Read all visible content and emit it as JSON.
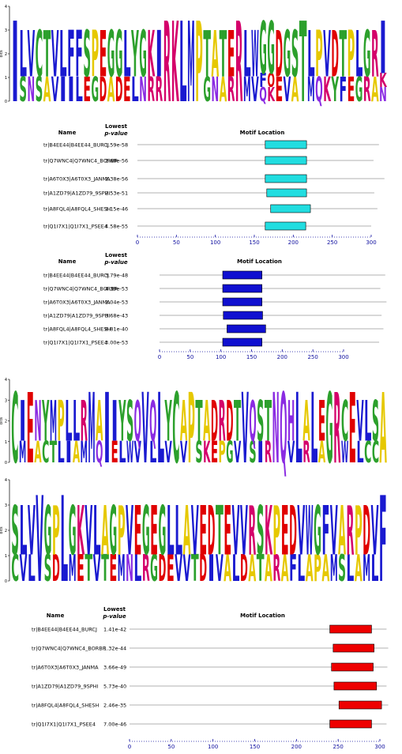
{
  "logo_axis": {
    "label": "bits",
    "ticks": [
      0,
      1,
      2,
      3,
      4
    ]
  },
  "colors": {
    "A": "#e6c800",
    "C": "#2ca02c",
    "D": "#e00000",
    "E": "#e00000",
    "F": "#1a1ad0",
    "G": "#2ca02c",
    "H": "#8a2be2",
    "I": "#1a1ad0",
    "K": "#d4006a",
    "L": "#1a1ad0",
    "M": "#1a1ad0",
    "N": "#8a2be2",
    "P": "#e6c800",
    "Q": "#8a2be2",
    "R": "#d4006a",
    "S": "#2ca02c",
    "T": "#2ca02c",
    "V": "#1a1ad0",
    "W": "#1a1ad0",
    "Y": "#2ca02c",
    "O": "#e00000"
  },
  "logos": [
    {
      "columns": [
        "I",
        "LS",
        "VN",
        "CS",
        "TA",
        "VV",
        "LI",
        "FI",
        "FL",
        "SE",
        "PG",
        "ED",
        "GA",
        "GD",
        "LE",
        "YL",
        "GN",
        "KR",
        "IR",
        "R",
        "K",
        "L",
        "M",
        "P",
        "TG",
        "AN",
        "TA",
        "ER",
        "R",
        "LM",
        "WV",
        "GFQ",
        "GOK",
        "DE",
        "GV",
        "SA",
        "T",
        "LM",
        "PQ",
        "VK",
        "DY",
        "TF",
        "PE",
        "LG",
        "GR",
        "RA",
        "IKN"
      ]
    },
    {
      "columns": [
        "C",
        "IM",
        "E",
        "NA",
        "YC",
        "MT",
        "PL",
        "LI",
        "LA",
        "RM",
        "M",
        "AQ",
        "I",
        "IE",
        "YL",
        "SW",
        "QV",
        "V",
        "QL",
        "L",
        "YV",
        "C",
        "AV",
        "P",
        "TS",
        "AK",
        "DE",
        "RP",
        "DG",
        "TV",
        "V",
        "QS",
        "SI",
        "TR",
        "N",
        "Q",
        "HV",
        "L",
        "AR",
        "L",
        "EA",
        "G",
        "R",
        "CW",
        "E",
        "VL",
        "LC",
        "SC",
        "A"
      ]
    },
    {
      "columns": [
        "SC",
        "LV",
        "VL",
        "V",
        "GS",
        "PD",
        "L",
        "GM",
        "KE",
        "VT",
        "LV",
        "AT",
        "GE",
        "PM",
        "VN",
        "EL",
        "GR",
        "EG",
        "GD",
        "LE",
        "LV",
        "AV",
        "VT",
        "ED",
        "DI",
        "TV",
        "EA",
        "VL",
        "VD",
        "RA",
        "ST",
        "KA",
        "PR",
        "EA",
        "DF",
        "VL",
        "WA",
        "GP",
        "FA",
        "VM",
        "AS",
        "RL",
        "PA",
        "DM",
        "VL",
        "F"
      ]
    }
  ],
  "tables": [
    {
      "headers": {
        "name": "Name",
        "lowest": "Lowest",
        "pvalue": "p-value",
        "location": "Motif Location"
      },
      "xlim": [
        0,
        300
      ],
      "xticks": [
        0,
        50,
        100,
        150,
        200,
        250,
        300
      ],
      "rows": [
        {
          "name": "tr|B4EE44|B4EE44_BURCJ",
          "pvalue": "1.59e-58",
          "length": 310,
          "start": 164,
          "end": 217
        },
        {
          "name": "tr|Q7WNC4|Q7WNC4_BORBR",
          "pvalue": "2.68e-56",
          "length": 303,
          "start": 164,
          "end": 217
        },
        {
          "name": "tr|A6T0X3|A6T0X3_JANMA",
          "pvalue": "2.38e-56",
          "length": 317,
          "start": 164,
          "end": 217
        },
        {
          "name": "tr|A1ZD79|A1ZD79_9SPHI",
          "pvalue": "2.53e-51",
          "length": 304,
          "start": 166,
          "end": 217
        },
        {
          "name": "tr|A8FQL4|A8FQL4_SHESH",
          "pvalue": "1.15e-46",
          "length": 308,
          "start": 171,
          "end": 222
        },
        {
          "name": "tr|Q1I7X1|Q1I7X1_PSEE4",
          "pvalue": "4.58e-55",
          "length": 300,
          "start": 164,
          "end": 216
        }
      ],
      "color": "#22dde0"
    },
    {
      "headers": {
        "name": "Name",
        "lowest": "Lowest",
        "pvalue": "p-value",
        "location": "Motif Location"
      },
      "xlim": [
        0,
        300
      ],
      "xticks": [
        0,
        50,
        100,
        150,
        200,
        250,
        300
      ],
      "rows": [
        {
          "name": "tr|B4EE44|B4EE44_BURCJ",
          "pvalue": "3.79e-48",
          "length": 368,
          "start": 103,
          "end": 167
        },
        {
          "name": "tr|Q7WNC4|Q7WNC4_BORBR",
          "pvalue": "4.39e-53",
          "length": 360,
          "start": 103,
          "end": 167
        },
        {
          "name": "tr|A6T0X3|A6T0X3_JANMA",
          "pvalue": "2.04e-53",
          "length": 370,
          "start": 103,
          "end": 167
        },
        {
          "name": "tr|A1ZD79|A1ZD79_9SPHI",
          "pvalue": "3.68e-43",
          "length": 362,
          "start": 104,
          "end": 168
        },
        {
          "name": "tr|A8FQL4|A8FQL4_SHESH",
          "pvalue": "8.81e-40",
          "length": 365,
          "start": 110,
          "end": 173
        },
        {
          "name": "tr|Q1I7X1|Q1I7X1_PSEE4",
          "pvalue": "3.00e-53",
          "length": 358,
          "start": 103,
          "end": 167
        }
      ],
      "color": "#1010d0"
    },
    {
      "headers": {
        "name": "Name",
        "lowest": "Lowest",
        "pvalue": "p-value",
        "location": "Motif Location"
      },
      "xlim": [
        0,
        300
      ],
      "xticks": [
        0,
        50,
        100,
        150,
        200,
        250,
        300
      ],
      "rows": [
        {
          "name": "tr|B4EE44|B4EE44_BURCJ",
          "pvalue": "1.41e-42",
          "length": 308,
          "start": 240,
          "end": 290
        },
        {
          "name": "tr|Q7WNC4|Q7WNC4_BORBR",
          "pvalue": "1.32e-44",
          "length": 310,
          "start": 244,
          "end": 293
        },
        {
          "name": "tr|A6T0X3|A6T0X3_JANMA",
          "pvalue": "3.66e-49",
          "length": 309,
          "start": 242,
          "end": 292
        },
        {
          "name": "tr|A1ZD79|A1ZD79_9SPHI",
          "pvalue": "5.73e-40",
          "length": 308,
          "start": 245,
          "end": 296
        },
        {
          "name": "tr|A8FQL4|A8FQL4_SHESH",
          "pvalue": "2.46e-35",
          "length": 310,
          "start": 251,
          "end": 302
        },
        {
          "name": "tr|Q1I7X1|Q1I7X1_PSEE4",
          "pvalue": "7.00e-46",
          "length": 308,
          "start": 240,
          "end": 290
        }
      ],
      "color": "#ee0000"
    }
  ]
}
